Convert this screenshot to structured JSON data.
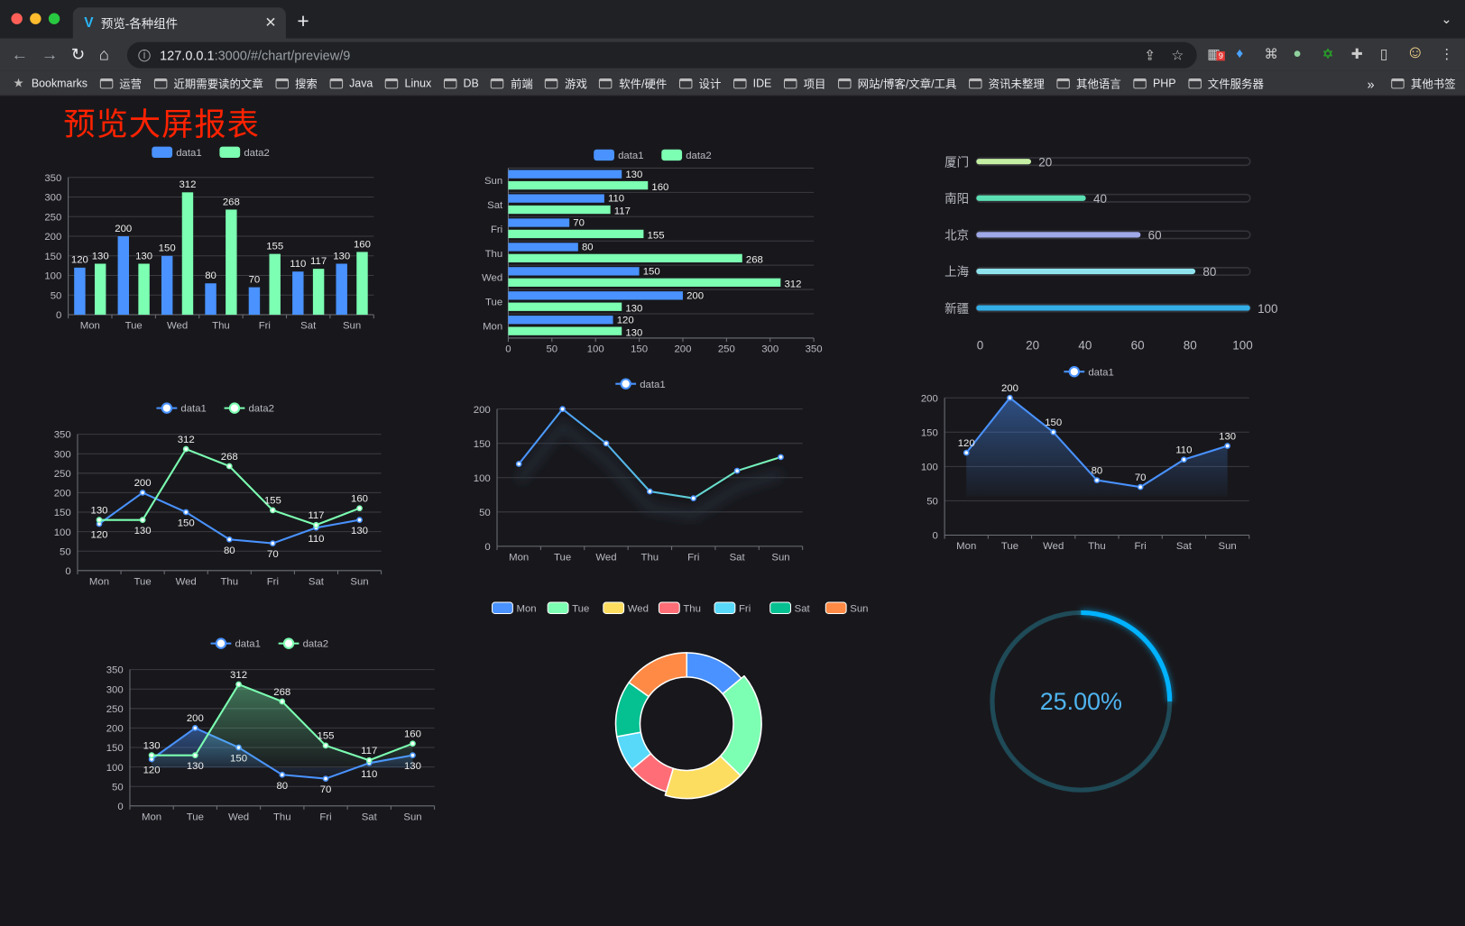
{
  "browser": {
    "tab_title": "预览-各种组件",
    "url_host": "127.0.0.1",
    "url_rest": ":3000/#/chart/preview/9",
    "extension_badge": "9",
    "bookmarks": [
      "Bookmarks",
      "运营",
      "近期需要读的文章",
      "搜索",
      "Java",
      "Linux",
      "DB",
      "前端",
      "游戏",
      "软件/硬件",
      "设计",
      "IDE",
      "项目",
      "网站/博客/文章/工具",
      "资讯未整理",
      "其他语言",
      "PHP",
      "文件服务器"
    ],
    "bookmarks_overflow": "»",
    "other_bookmarks": "其他书签"
  },
  "page": {
    "title": "预览大屏报表"
  },
  "colors": {
    "data1": "#4992ff",
    "data2": "#7cffb2",
    "title": "#ff2200",
    "gauge": "#00b2ff"
  },
  "chart_data": [
    {
      "type": "bar",
      "orientation": "vertical",
      "categories": [
        "Mon",
        "Tue",
        "Wed",
        "Thu",
        "Fri",
        "Sat",
        "Sun"
      ],
      "series": [
        {
          "name": "data1",
          "values": [
            120,
            200,
            150,
            80,
            70,
            110,
            130
          ]
        },
        {
          "name": "data2",
          "values": [
            130,
            130,
            312,
            268,
            155,
            117,
            160
          ]
        }
      ],
      "yticks": [
        0,
        50,
        100,
        150,
        200,
        250,
        300,
        350
      ],
      "ylim": [
        0,
        350
      ],
      "legend": "top",
      "grid": true
    },
    {
      "type": "bar",
      "orientation": "horizontal",
      "categories": [
        "Mon",
        "Tue",
        "Wed",
        "Thu",
        "Fri",
        "Sat",
        "Sun"
      ],
      "series": [
        {
          "name": "data1",
          "values": [
            120,
            200,
            150,
            80,
            70,
            110,
            130
          ]
        },
        {
          "name": "data2",
          "values": [
            130,
            130,
            312,
            268,
            155,
            117,
            160
          ]
        }
      ],
      "xticks": [
        0,
        50,
        100,
        150,
        200,
        250,
        300,
        350
      ],
      "xlim": [
        0,
        350
      ],
      "legend": "top",
      "grid": true
    },
    {
      "type": "bar",
      "orientation": "horizontal-progress",
      "categories": [
        "厦门",
        "南阳",
        "北京",
        "上海",
        "新疆"
      ],
      "values": [
        20,
        40,
        60,
        80,
        100
      ],
      "colors": [
        "#c5f0a4",
        "#5be0b3",
        "#9fa8e8",
        "#8fe3ec",
        "#33aee6"
      ],
      "xticks": [
        0,
        20,
        40,
        60,
        80,
        100
      ],
      "xlim": [
        0,
        100
      ]
    },
    {
      "type": "line",
      "categories": [
        "Mon",
        "Tue",
        "Wed",
        "Thu",
        "Fri",
        "Sat",
        "Sun"
      ],
      "series": [
        {
          "name": "data1",
          "values": [
            120,
            200,
            150,
            80,
            70,
            110,
            130
          ]
        },
        {
          "name": "data2",
          "values": [
            130,
            130,
            312,
            268,
            155,
            117,
            160
          ]
        }
      ],
      "yticks": [
        0,
        50,
        100,
        150,
        200,
        250,
        300,
        350
      ],
      "ylim": [
        0,
        350
      ],
      "legend": "top",
      "grid": true
    },
    {
      "type": "line",
      "gradient_line": true,
      "categories": [
        "Mon",
        "Tue",
        "Wed",
        "Thu",
        "Fri",
        "Sat",
        "Sun"
      ],
      "series": [
        {
          "name": "data1",
          "values": [
            120,
            200,
            150,
            80,
            70,
            110,
            130
          ]
        }
      ],
      "yticks": [
        0,
        50,
        100,
        150,
        200
      ],
      "ylim": [
        0,
        200
      ],
      "legend": "top",
      "grid": true
    },
    {
      "type": "area",
      "categories": [
        "Mon",
        "Tue",
        "Wed",
        "Thu",
        "Fri",
        "Sat",
        "Sun"
      ],
      "series": [
        {
          "name": "data1",
          "values": [
            120,
            200,
            150,
            80,
            70,
            110,
            130
          ]
        }
      ],
      "yticks": [
        0,
        50,
        100,
        150,
        200
      ],
      "ylim": [
        0,
        200
      ],
      "legend": "top",
      "grid": true
    },
    {
      "type": "area",
      "categories": [
        "Mon",
        "Tue",
        "Wed",
        "Thu",
        "Fri",
        "Sat",
        "Sun"
      ],
      "series": [
        {
          "name": "data1",
          "values": [
            120,
            200,
            150,
            80,
            70,
            110,
            130
          ]
        },
        {
          "name": "data2",
          "values": [
            130,
            130,
            312,
            268,
            155,
            117,
            160
          ]
        }
      ],
      "yticks": [
        0,
        50,
        100,
        150,
        200,
        250,
        300,
        350
      ],
      "ylim": [
        0,
        350
      ],
      "legend": "top",
      "grid": true
    },
    {
      "type": "pie",
      "donut": true,
      "categories": [
        "Mon",
        "Tue",
        "Wed",
        "Thu",
        "Fri",
        "Sat",
        "Sun"
      ],
      "values": [
        120,
        200,
        150,
        80,
        70,
        110,
        130
      ],
      "colors": [
        "#4992ff",
        "#7cffb2",
        "#fddd60",
        "#ff6e76",
        "#58d9f9",
        "#05c091",
        "#ff8a45"
      ],
      "legend": "top"
    },
    {
      "type": "gauge",
      "value": 0.25,
      "label": "25.00%"
    }
  ]
}
